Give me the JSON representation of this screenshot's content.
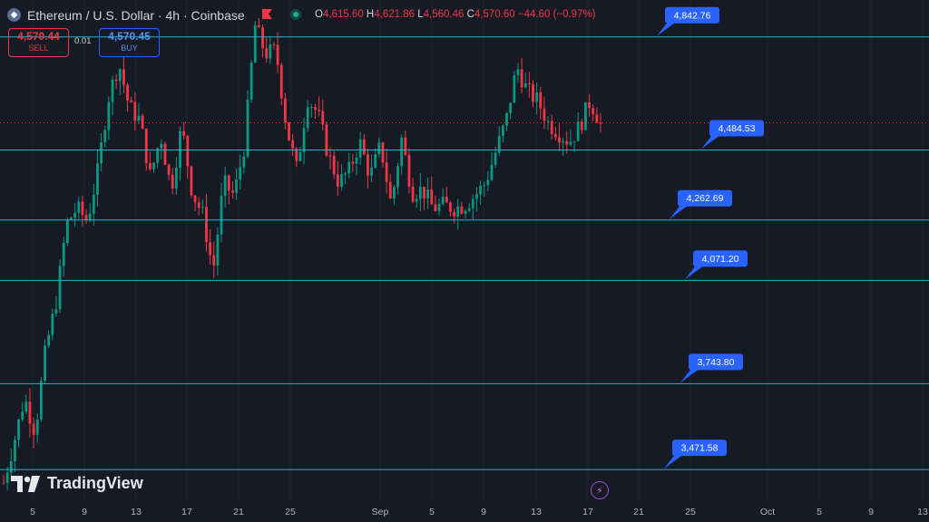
{
  "header": {
    "title": "Ethereum / U.S. Dollar · 4h · Coinbase",
    "ohlc": {
      "o_label": "O",
      "o": "4,615.60",
      "h_label": "H",
      "h": "4,621.86",
      "l_label": "L",
      "l": "4,560.46",
      "c_label": "C",
      "c": "4,570.60",
      "change": "−44.60 (−0.97%)"
    }
  },
  "trade": {
    "sell_price": "4,570.44",
    "sell_label": "SELL",
    "spread": "0.01",
    "buy_price": "4,570.45",
    "buy_label": "BUY"
  },
  "brand": {
    "logo_text": "TradingView"
  },
  "colors": {
    "up": "#089981",
    "down": "#f23645",
    "level_line": "#26b3c6",
    "label_bg": "#2962ff",
    "background": "#161a25"
  },
  "chart_data": {
    "type": "candlestick",
    "x_ticks": [
      "5",
      "9",
      "13",
      "17",
      "21",
      "25",
      "Sep",
      "5",
      "9",
      "13",
      "17",
      "21",
      "25",
      "Oct",
      "5",
      "9",
      "13"
    ],
    "ylim": [
      3380,
      4960
    ],
    "levels": [
      {
        "label": "4,842.76",
        "value": 4842.76
      },
      {
        "label": "4,484.53",
        "value": 4484.53
      },
      {
        "label": "4,262.69",
        "value": 4262.69
      },
      {
        "label": "4,071.20",
        "value": 4071.2
      },
      {
        "label": "3,743.80",
        "value": 3743.8
      },
      {
        "label": "3,471.58",
        "value": 3471.58
      }
    ],
    "current_price": 4570.6,
    "path": [
      3430,
      3560,
      3700,
      3590,
      3850,
      4000,
      4250,
      4300,
      4260,
      4420,
      4650,
      4760,
      4620,
      4580,
      4400,
      4530,
      4360,
      4560,
      4350,
      4280,
      4100,
      4380,
      4340,
      4500,
      4880,
      4790,
      4800,
      4560,
      4420,
      4650,
      4600,
      4470,
      4380,
      4420,
      4510,
      4400,
      4500,
      4310,
      4520,
      4350,
      4360,
      4300,
      4310,
      4300,
      4310,
      4340,
      4380,
      4480,
      4580,
      4750,
      4670,
      4640,
      4570,
      4540,
      4510,
      4560,
      4640,
      4570
    ]
  }
}
